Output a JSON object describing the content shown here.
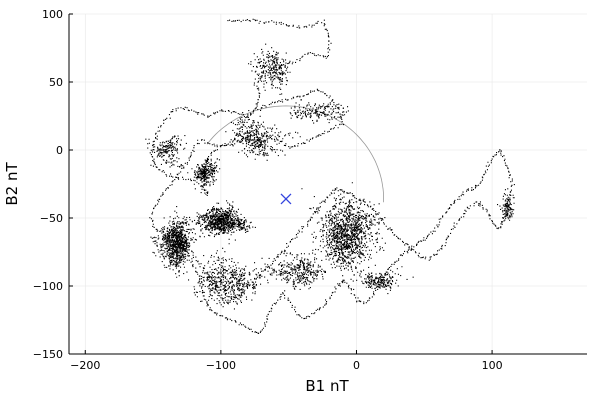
{
  "chart_data": {
    "type": "scatter",
    "xlabel": "B1 nT",
    "ylabel": "B2 nT",
    "xlim": [
      -212,
      170
    ],
    "ylim": [
      -150,
      100
    ],
    "x_ticks": [
      -200,
      -100,
      0,
      100
    ],
    "y_ticks": [
      -150,
      -100,
      -50,
      0,
      50,
      100
    ],
    "x_tick_labels": [
      "−200",
      "−100",
      "0",
      "100"
    ],
    "y_tick_labels": [
      "−150",
      "−100",
      "−50",
      "0",
      "50",
      "100"
    ],
    "grid": true,
    "legend": "none",
    "colors": {
      "points": "#000000",
      "marker": "#3344dd",
      "arc": "#999999",
      "grid": "#e6e6e6"
    },
    "series": [
      {
        "kind": "trajectory",
        "description_points": [
          [
            -95,
            95
          ],
          [
            -80,
            96
          ],
          [
            -60,
            94
          ],
          [
            -40,
            90
          ],
          [
            -25,
            95
          ],
          [
            -20,
            80
          ],
          [
            -22,
            68
          ],
          [
            -35,
            72
          ],
          [
            -45,
            65
          ],
          [
            -60,
            62
          ],
          [
            -70,
            55
          ],
          [
            -75,
            48
          ],
          [
            -72,
            42
          ],
          [
            -75,
            30
          ],
          [
            -80,
            25
          ],
          [
            -90,
            28
          ],
          [
            -100,
            30
          ],
          [
            -110,
            25
          ],
          [
            -118,
            28
          ],
          [
            -128,
            32
          ],
          [
            -135,
            30
          ],
          [
            -142,
            22
          ],
          [
            -148,
            12
          ],
          [
            -150,
            5
          ],
          [
            -152,
            -5
          ],
          [
            -148,
            -12
          ],
          [
            -140,
            -18
          ],
          [
            -130,
            -20
          ],
          [
            -120,
            -22
          ],
          [
            -115,
            -18
          ],
          [
            -112,
            -12
          ],
          [
            -110,
            -5
          ],
          [
            -105,
            0
          ],
          [
            -98,
            5
          ],
          [
            -90,
            8
          ],
          [
            -85,
            18
          ],
          [
            -80,
            28
          ],
          [
            -70,
            32
          ],
          [
            -60,
            35
          ],
          [
            -50,
            38
          ],
          [
            -40,
            40
          ],
          [
            -30,
            45
          ],
          [
            -20,
            40
          ],
          [
            -15,
            32
          ],
          [
            -10,
            20
          ],
          [
            -20,
            15
          ],
          [
            -30,
            10
          ],
          [
            -40,
            5
          ],
          [
            -50,
            2
          ],
          [
            -60,
            8
          ],
          [
            -70,
            12
          ],
          [
            -80,
            10
          ],
          [
            -90,
            5
          ],
          [
            -100,
            3
          ],
          [
            -108,
            5
          ],
          [
            -115,
            8
          ],
          [
            -120,
            2
          ],
          [
            -125,
            -8
          ],
          [
            -130,
            -15
          ],
          [
            -135,
            -22
          ],
          [
            -140,
            -28
          ],
          [
            -145,
            -35
          ],
          [
            -150,
            -42
          ],
          [
            -152,
            -50
          ],
          [
            -148,
            -58
          ],
          [
            -142,
            -62
          ],
          [
            -135,
            -65
          ],
          [
            -130,
            -70
          ],
          [
            -125,
            -75
          ],
          [
            -122,
            -82
          ],
          [
            -118,
            -90
          ],
          [
            -115,
            -100
          ],
          [
            -112,
            -110
          ],
          [
            -108,
            -118
          ],
          [
            -100,
            -122
          ],
          [
            -92,
            -125
          ],
          [
            -85,
            -128
          ],
          [
            -78,
            -132
          ],
          [
            -72,
            -135
          ],
          [
            -68,
            -128
          ],
          [
            -65,
            -120
          ],
          [
            -60,
            -112
          ],
          [
            -55,
            -105
          ],
          [
            -50,
            -110
          ],
          [
            -45,
            -118
          ],
          [
            -40,
            -124
          ],
          [
            -32,
            -120
          ],
          [
            -25,
            -115
          ],
          [
            -20,
            -108
          ],
          [
            -15,
            -100
          ],
          [
            -10,
            -95
          ],
          [
            -5,
            -100
          ],
          [
            0,
            -110
          ],
          [
            5,
            -112
          ],
          [
            10,
            -108
          ],
          [
            15,
            -100
          ],
          [
            20,
            -92
          ],
          [
            25,
            -85
          ],
          [
            30,
            -80
          ],
          [
            35,
            -75
          ],
          [
            40,
            -72
          ],
          [
            45,
            -68
          ],
          [
            50,
            -65
          ],
          [
            55,
            -60
          ],
          [
            60,
            -55
          ],
          [
            65,
            -45
          ],
          [
            70,
            -40
          ],
          [
            75,
            -35
          ],
          [
            80,
            -30
          ],
          [
            85,
            -28
          ],
          [
            90,
            -25
          ],
          [
            95,
            -15
          ],
          [
            100,
            -5
          ],
          [
            105,
            0
          ],
          [
            108,
            -5
          ],
          [
            112,
            -15
          ],
          [
            115,
            -25
          ],
          [
            112,
            -35
          ],
          [
            110,
            -45
          ],
          [
            108,
            -52
          ],
          [
            104,
            -58
          ],
          [
            100,
            -52
          ],
          [
            96,
            -45
          ],
          [
            92,
            -40
          ],
          [
            88,
            -38
          ],
          [
            82,
            -42
          ],
          [
            78,
            -48
          ],
          [
            72,
            -55
          ],
          [
            68,
            -62
          ],
          [
            64,
            -70
          ],
          [
            58,
            -76
          ],
          [
            52,
            -80
          ],
          [
            46,
            -78
          ],
          [
            40,
            -72
          ],
          [
            35,
            -68
          ],
          [
            28,
            -62
          ],
          [
            22,
            -55
          ],
          [
            16,
            -48
          ],
          [
            10,
            -42
          ],
          [
            5,
            -38
          ],
          [
            0,
            -35
          ],
          [
            -5,
            -32
          ],
          [
            -10,
            -30
          ],
          [
            -15,
            -28
          ],
          [
            -20,
            -32
          ],
          [
            -25,
            -38
          ],
          [
            -30,
            -45
          ],
          [
            -35,
            -52
          ],
          [
            -40,
            -58
          ],
          [
            -45,
            -62
          ],
          [
            -50,
            -68
          ],
          [
            -55,
            -74
          ],
          [
            -60,
            -80
          ],
          [
            -65,
            -85
          ],
          [
            -70,
            -90
          ],
          [
            -75,
            -96
          ],
          [
            -80,
            -100
          ],
          [
            -85,
            -104
          ],
          [
            -90,
            -108
          ],
          [
            -95,
            -112
          ],
          [
            -100,
            -108
          ],
          [
            -105,
            -100
          ],
          [
            -110,
            -92
          ],
          [
            -115,
            -85
          ],
          [
            -120,
            -78
          ],
          [
            -125,
            -70
          ]
        ]
      }
    ],
    "clusters": [
      {
        "cx": -134,
        "cy": -68,
        "rx": 12,
        "ry": 18,
        "n": 900
      },
      {
        "cx": -100,
        "cy": -52,
        "rx": 16,
        "ry": 10,
        "n": 800
      },
      {
        "cx": -8,
        "cy": -62,
        "rx": 24,
        "ry": 26,
        "n": 1200
      },
      {
        "cx": -112,
        "cy": -18,
        "rx": 8,
        "ry": 10,
        "n": 300
      },
      {
        "cx": -60,
        "cy": 60,
        "rx": 16,
        "ry": 18,
        "n": 250
      },
      {
        "cx": -75,
        "cy": 6,
        "rx": 22,
        "ry": 14,
        "n": 350
      },
      {
        "cx": -95,
        "cy": -95,
        "rx": 22,
        "ry": 16,
        "n": 500
      },
      {
        "cx": -45,
        "cy": -90,
        "rx": 20,
        "ry": 14,
        "n": 350
      },
      {
        "cx": -140,
        "cy": 0,
        "rx": 14,
        "ry": 12,
        "n": 200
      },
      {
        "cx": 110,
        "cy": -45,
        "rx": 6,
        "ry": 12,
        "n": 120
      },
      {
        "cx": -30,
        "cy": 30,
        "rx": 20,
        "ry": 10,
        "n": 180
      },
      {
        "cx": 20,
        "cy": -95,
        "rx": 18,
        "ry": 10,
        "n": 200
      }
    ],
    "reference_arc": {
      "cx": -52,
      "cy": -36,
      "r": 72,
      "start_deg": -2,
      "end_deg": 145
    },
    "marker": {
      "x": -52,
      "y": -36,
      "symbol": "x"
    }
  }
}
